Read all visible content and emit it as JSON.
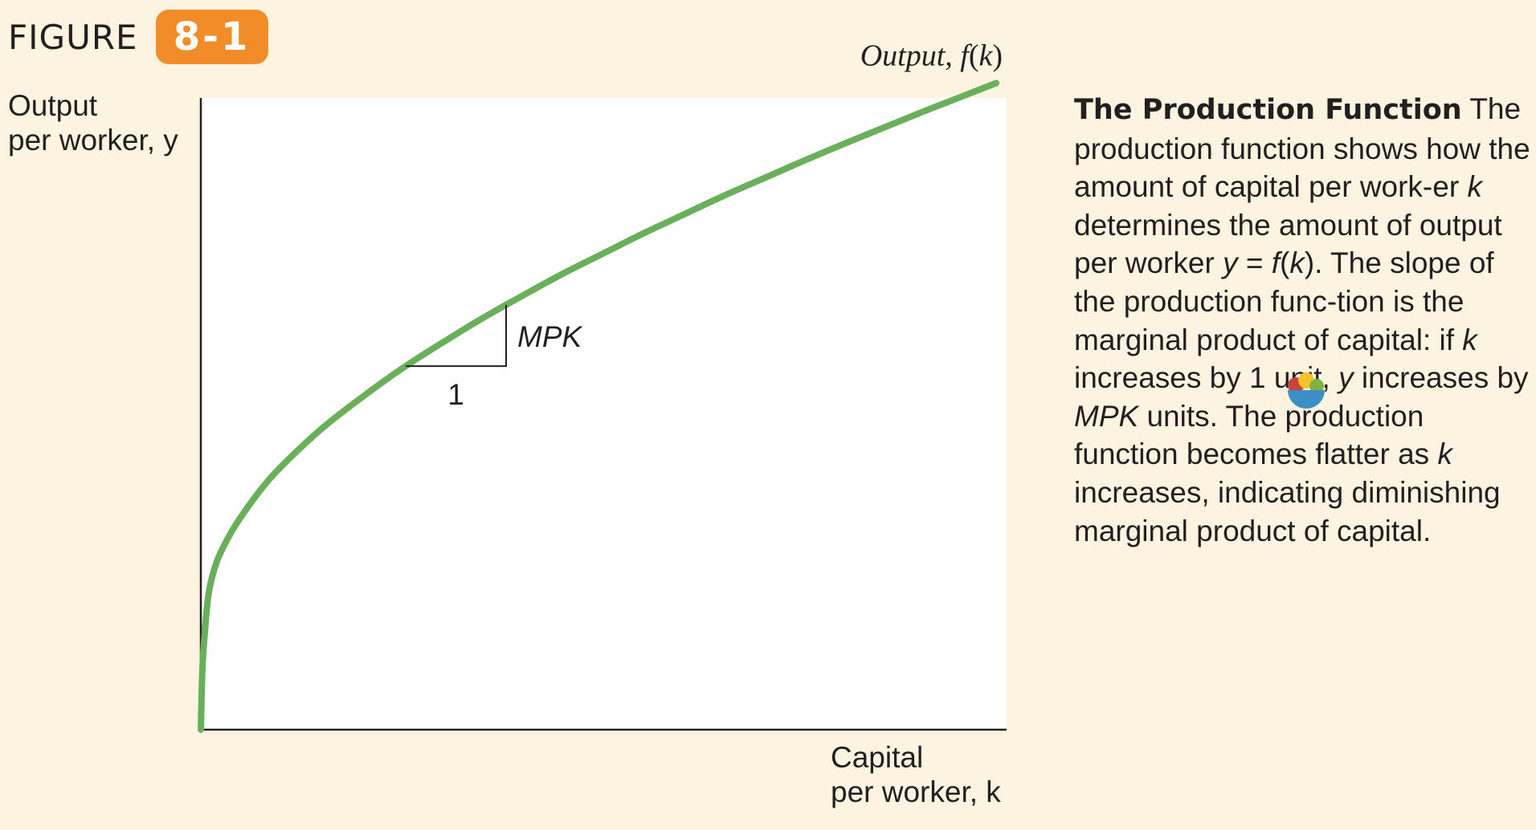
{
  "figure": {
    "label": "FIGURE",
    "number": "8-1",
    "badge_color": "#f28c28",
    "background": "#fcf3e0"
  },
  "chart_data": {
    "type": "line",
    "title": "",
    "xlabel_line1": "Capital",
    "xlabel_line2": "per worker, k",
    "ylabel_line1": "Output",
    "ylabel_line2": "per worker, y",
    "grid": false,
    "ticks": false,
    "xlim": [
      0,
      10
    ],
    "ylim": [
      0,
      10
    ],
    "series": [
      {
        "name": "Output, f(k)",
        "label_prefix": "Output, ",
        "label_func": "f",
        "label_arg": "k",
        "color": "#6aaf5a",
        "x": [
          0.0,
          0.02,
          0.05,
          0.1,
          0.2,
          0.35,
          0.5,
          0.75,
          1.0,
          1.5,
          2.0,
          2.5,
          3.0,
          3.5,
          4.0,
          4.5,
          5.0,
          5.5,
          6.0,
          6.5,
          7.0,
          7.5,
          8.0,
          8.5,
          9.0,
          9.5,
          9.9
        ],
        "y": [
          0.0,
          0.98,
          1.55,
          2.19,
          2.68,
          3.08,
          3.39,
          3.83,
          4.19,
          4.79,
          5.29,
          5.75,
          6.16,
          6.55,
          6.91,
          7.26,
          7.58,
          7.9,
          8.2,
          8.5,
          8.78,
          9.06,
          9.33,
          9.59,
          9.85,
          10.1,
          10.3
        ]
      }
    ],
    "annotations": {
      "slope_label": "MPK",
      "run_label": "1",
      "triangle_x": [
        2.55,
        3.8
      ]
    }
  },
  "caption": {
    "title": "The Production Function",
    "parts": [
      {
        "t": " The production function shows how the amount of capital per work-er ",
        "i": false
      },
      {
        "t": "k",
        "i": true
      },
      {
        "t": " determines the amount of output per worker ",
        "i": false
      },
      {
        "t": "y",
        "i": true
      },
      {
        "t": " = ",
        "i": false
      },
      {
        "t": "f",
        "i": true
      },
      {
        "t": "(",
        "i": false
      },
      {
        "t": "k",
        "i": true
      },
      {
        "t": "). The slope of the production func-tion is the marginal product of capital: if ",
        "i": false
      },
      {
        "t": "k",
        "i": true
      },
      {
        "t": " increases by 1 unit, ",
        "i": false
      },
      {
        "t": "y",
        "i": true
      },
      {
        "t": " increases by ",
        "i": false
      },
      {
        "t": "MPK",
        "i": true
      },
      {
        "t": " units. The production function becomes flatter as ",
        "i": false
      },
      {
        "t": "k",
        "i": true
      },
      {
        "t": " increases, indicating diminishing marginal product of capital.",
        "i": false
      }
    ]
  },
  "watermark": {
    "icon": "fruit-bowl-icon"
  }
}
